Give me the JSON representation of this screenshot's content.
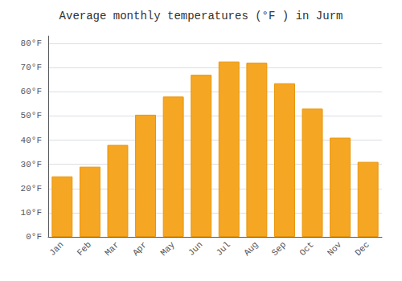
{
  "chart_data": {
    "type": "bar",
    "title": "Average monthly temperatures (°F ) in Jurm",
    "categories": [
      "Jan",
      "Feb",
      "Mar",
      "Apr",
      "May",
      "Jun",
      "Jul",
      "Aug",
      "Sep",
      "Oct",
      "Nov",
      "Dec"
    ],
    "values": [
      25,
      29,
      38,
      50.5,
      58,
      67,
      72.5,
      72,
      63.5,
      53,
      41,
      31
    ],
    "color": "#F5A623",
    "ylim": [
      0,
      83
    ],
    "yticks": [
      {
        "value": 0,
        "label": "0°F"
      },
      {
        "value": 10,
        "label": "10°F"
      },
      {
        "value": 20,
        "label": "20°F"
      },
      {
        "value": 30,
        "label": "30°F"
      },
      {
        "value": 40,
        "label": "40°F"
      },
      {
        "value": 50,
        "label": "50°F"
      },
      {
        "value": 60,
        "label": "60°F"
      },
      {
        "value": 70,
        "label": "70°F"
      },
      {
        "value": 80,
        "label": "80°F"
      }
    ],
    "grid": true
  }
}
